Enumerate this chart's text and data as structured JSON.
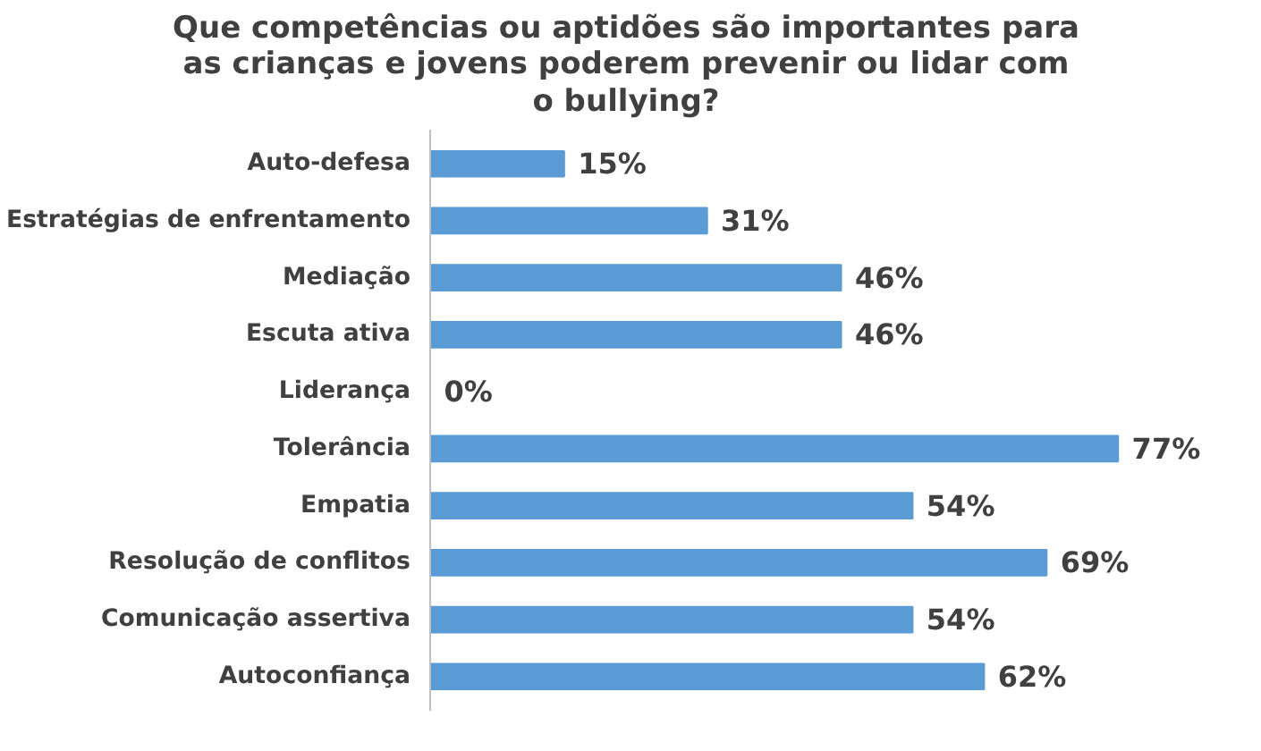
{
  "chart_data": {
    "type": "bar",
    "orientation": "horizontal",
    "title": "Que competências ou aptidões são importantes para as crianças e jovens poderem prevenir ou lidar com o bullying?",
    "categories": [
      "Auto-defesa",
      "Estratégias de enfrentamento",
      "Mediação",
      "Escuta ativa",
      "Liderança",
      "Tolerância",
      "Empatia",
      "Resolução de conflitos",
      "Comunicação assertiva",
      "Autoconfiança"
    ],
    "values": [
      15,
      31,
      46,
      46,
      0,
      77,
      54,
      69,
      54,
      62
    ],
    "value_labels": [
      "15%",
      "31%",
      "46%",
      "46%",
      "0%",
      "77%",
      "54%",
      "69%",
      "54%",
      "62%"
    ],
    "color": "#5b9bd5",
    "grid": false
  }
}
